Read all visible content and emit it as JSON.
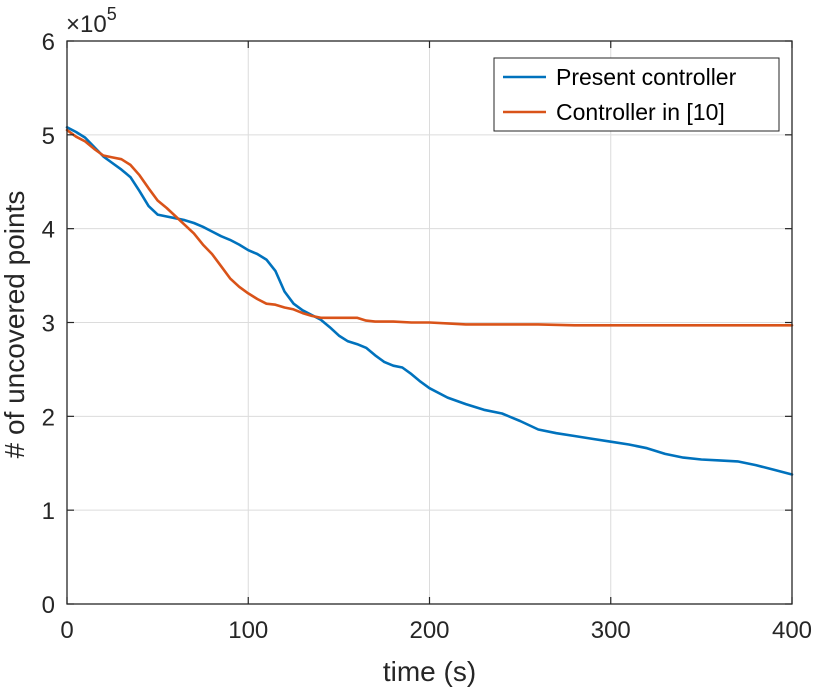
{
  "chart_data": {
    "type": "line",
    "xlabel": "time (s)",
    "ylabel": "# of uncovered points",
    "y_exponent_label": "×10",
    "y_exponent_power": "5",
    "xlim": [
      0,
      400
    ],
    "ylim": [
      0,
      6
    ],
    "x_ticks": [
      0,
      100,
      200,
      300,
      400
    ],
    "x_tick_labels": [
      "0",
      "100",
      "200",
      "300",
      "400"
    ],
    "y_ticks": [
      0,
      1,
      2,
      3,
      4,
      5,
      6
    ],
    "y_tick_labels": [
      "0",
      "1",
      "2",
      "3",
      "4",
      "5",
      "6"
    ],
    "grid": true,
    "legend_position": "top-right",
    "y_scale_note": "values in units of 10^5",
    "series": [
      {
        "name": "Present controller",
        "color": "#0072BD",
        "x": [
          0,
          5,
          10,
          15,
          20,
          25,
          30,
          35,
          40,
          45,
          50,
          55,
          60,
          65,
          70,
          75,
          80,
          85,
          90,
          95,
          100,
          105,
          110,
          115,
          120,
          125,
          130,
          135,
          140,
          145,
          150,
          155,
          160,
          165,
          170,
          175,
          180,
          185,
          190,
          195,
          200,
          210,
          220,
          230,
          240,
          250,
          260,
          270,
          280,
          290,
          300,
          310,
          320,
          330,
          340,
          350,
          360,
          370,
          380,
          390,
          400
        ],
        "values": [
          5.08,
          5.03,
          4.97,
          4.87,
          4.77,
          4.7,
          4.63,
          4.55,
          4.4,
          4.24,
          4.15,
          4.13,
          4.11,
          4.09,
          4.06,
          4.02,
          3.97,
          3.92,
          3.88,
          3.83,
          3.77,
          3.73,
          3.67,
          3.55,
          3.33,
          3.2,
          3.13,
          3.08,
          3.03,
          2.95,
          2.86,
          2.8,
          2.77,
          2.73,
          2.65,
          2.58,
          2.54,
          2.52,
          2.45,
          2.37,
          2.3,
          2.2,
          2.13,
          2.07,
          2.03,
          1.95,
          1.86,
          1.82,
          1.79,
          1.76,
          1.73,
          1.7,
          1.66,
          1.6,
          1.56,
          1.54,
          1.53,
          1.52,
          1.48,
          1.43,
          1.38
        ]
      },
      {
        "name": "Controller in [10]",
        "color": "#D95319",
        "x": [
          0,
          5,
          10,
          15,
          20,
          25,
          30,
          35,
          40,
          45,
          50,
          55,
          60,
          65,
          70,
          75,
          80,
          85,
          90,
          95,
          100,
          105,
          110,
          115,
          120,
          125,
          130,
          135,
          140,
          145,
          150,
          155,
          160,
          165,
          170,
          180,
          190,
          200,
          210,
          220,
          240,
          260,
          280,
          300,
          320,
          340,
          360,
          380,
          400
        ],
        "values": [
          5.05,
          4.98,
          4.93,
          4.85,
          4.78,
          4.76,
          4.74,
          4.68,
          4.57,
          4.43,
          4.3,
          4.22,
          4.13,
          4.04,
          3.95,
          3.83,
          3.73,
          3.6,
          3.47,
          3.38,
          3.31,
          3.25,
          3.2,
          3.19,
          3.16,
          3.14,
          3.1,
          3.07,
          3.05,
          3.05,
          3.05,
          3.05,
          3.05,
          3.02,
          3.01,
          3.01,
          3.0,
          3.0,
          2.99,
          2.98,
          2.98,
          2.98,
          2.97,
          2.97,
          2.97,
          2.97,
          2.97,
          2.97,
          2.97
        ]
      }
    ]
  }
}
